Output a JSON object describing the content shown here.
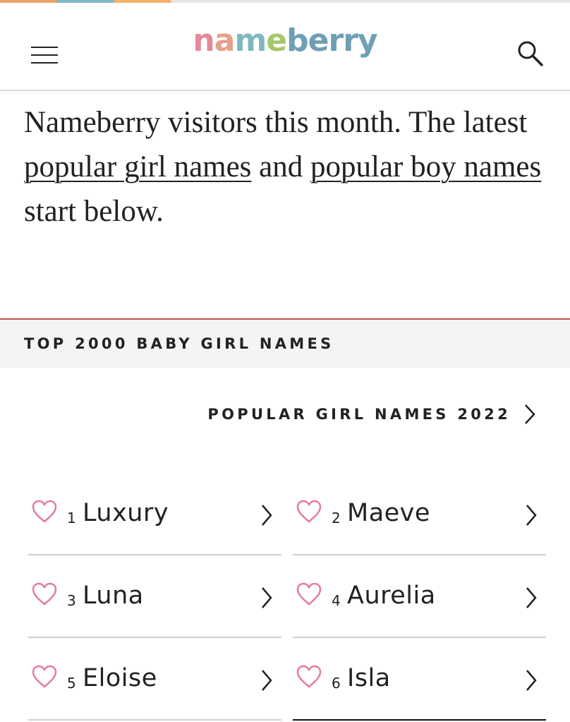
{
  "header": {
    "logo": "nameberry"
  },
  "intro": {
    "text_1": "Nameberry visitors this month. The latest ",
    "link_1": "popular girl names",
    "text_2": " and ",
    "link_2": "popular boy names",
    "text_3": " start below."
  },
  "section": {
    "title": "TOP 2000 BABY GIRL NAMES",
    "link": "POPULAR GIRL NAMES 2022"
  },
  "names": [
    {
      "rank": "1",
      "name": "Luxury"
    },
    {
      "rank": "2",
      "name": "Maeve"
    },
    {
      "rank": "3",
      "name": "Luna"
    },
    {
      "rank": "4",
      "name": "Aurelia"
    },
    {
      "rank": "5",
      "name": "Eloise"
    },
    {
      "rank": "6",
      "name": "Isla"
    }
  ]
}
